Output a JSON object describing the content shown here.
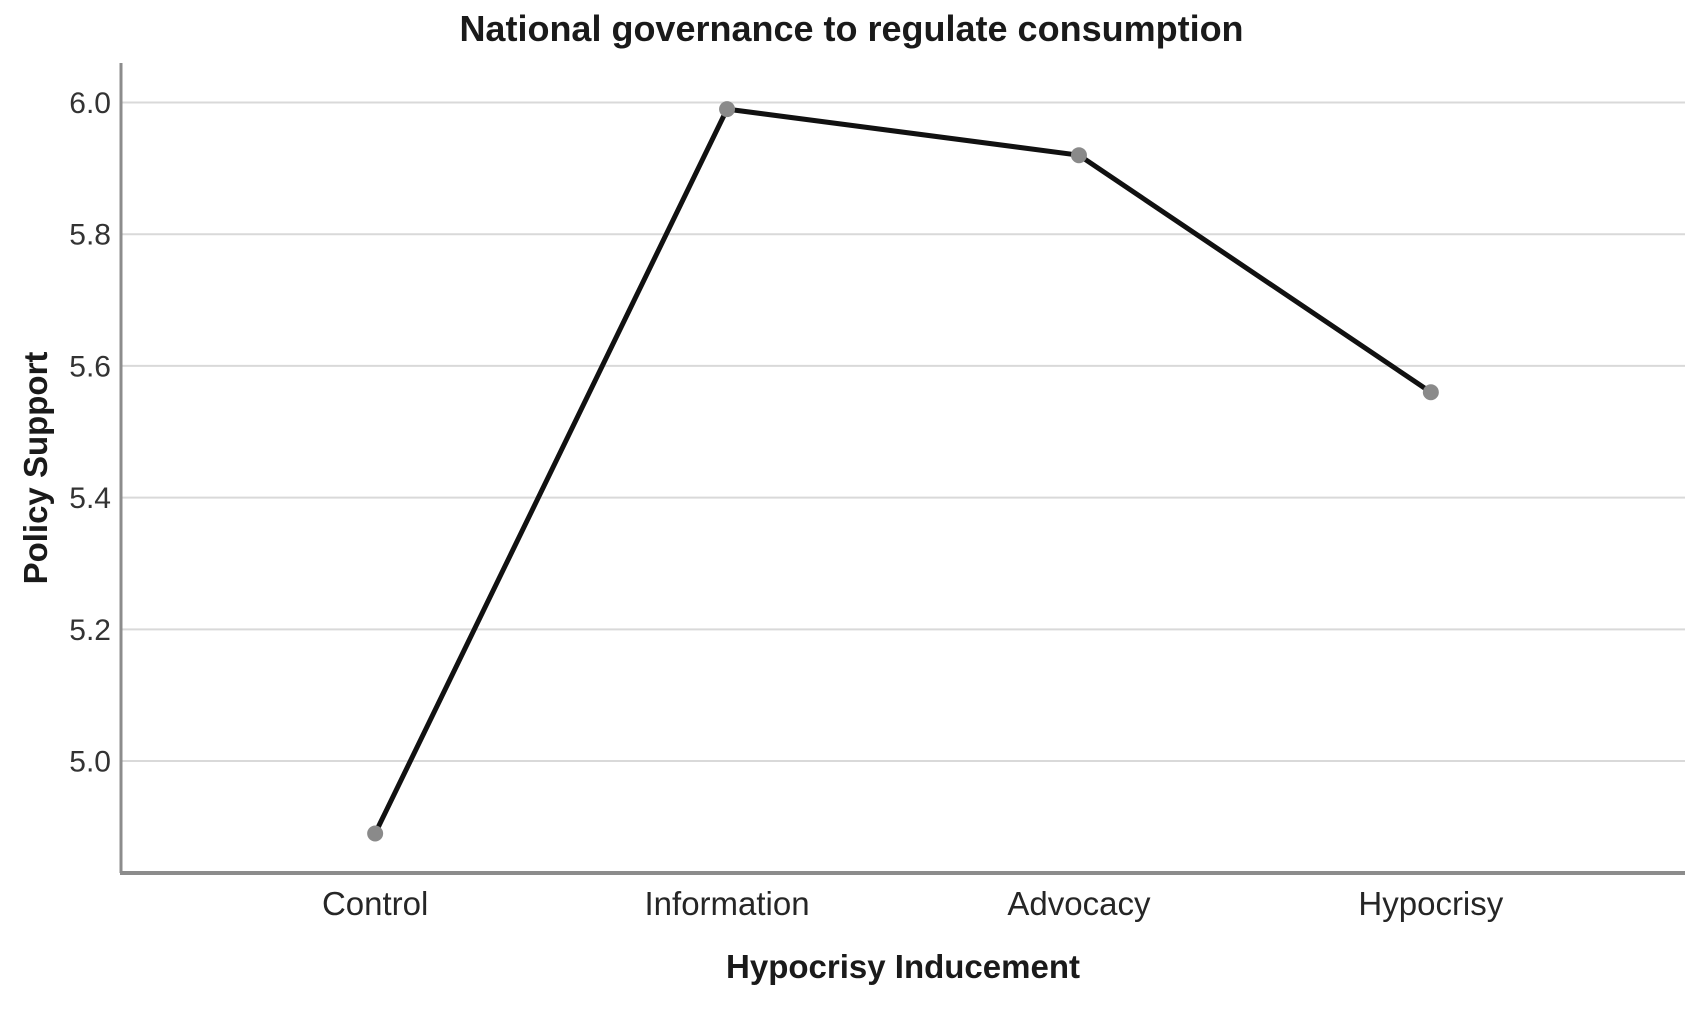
{
  "chart_data": {
    "type": "line",
    "title": "National governance to regulate consumption",
    "xlabel": "Hypocrisy Inducement",
    "ylabel": "Policy Support",
    "categories": [
      "Control",
      "Information",
      "Advocacy",
      "Hypocrisy"
    ],
    "series": [
      {
        "name": "Policy Support",
        "values": [
          4.89,
          5.99,
          5.92,
          5.56
        ]
      }
    ],
    "yticks": [
      "5.0",
      "5.2",
      "5.4",
      "5.6",
      "5.8",
      "6.0"
    ],
    "ylim": [
      4.83,
      6.06
    ],
    "grid": "horizontal",
    "legend_position": "none",
    "colors": {
      "line": "#111111",
      "marker": "#8a8a8a",
      "gridline": "#d9d9d9",
      "axis": "#8c8c8c",
      "tick_text": "#333333",
      "title_text": "#1a1a1a"
    }
  }
}
